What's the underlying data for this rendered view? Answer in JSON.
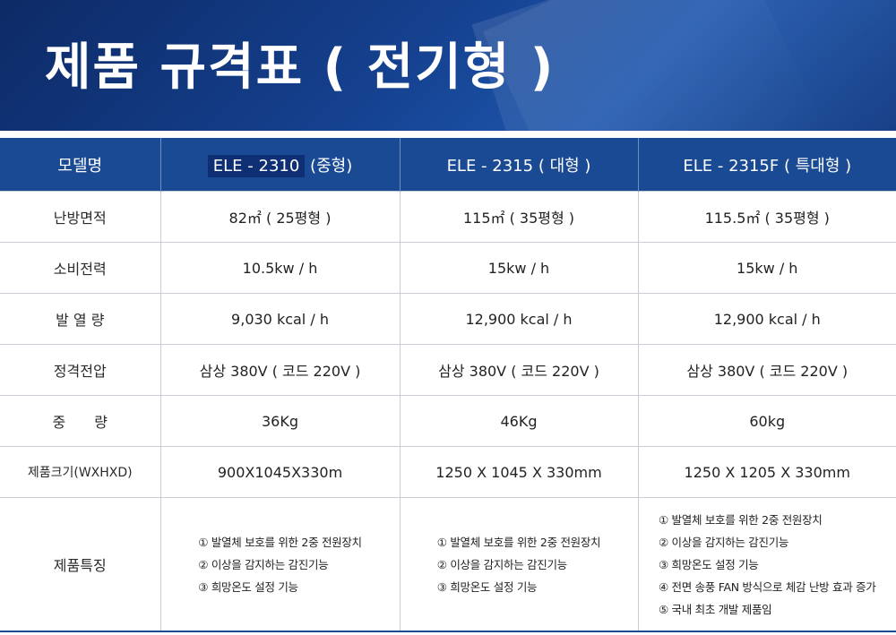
{
  "title": "제품 규격표 ( 전기형 )",
  "header": {
    "label": "모델명",
    "models": [
      {
        "name": "ELE - 2310",
        "suffix": "(중형)"
      },
      {
        "name": "ELE - 2315",
        "suffix": "( 대형 )"
      },
      {
        "name": "ELE - 2315F",
        "suffix": "( 특대형 )"
      }
    ]
  },
  "rows": [
    {
      "label": "난방면적",
      "values": [
        "82㎡ ( 25평형 )",
        "115㎡ ( 35평형 )",
        "115.5㎡ ( 35평형 )"
      ]
    },
    {
      "label": "소비전력",
      "values": [
        "10.5kw / h",
        "15kw / h",
        "15kw / h"
      ]
    },
    {
      "label": "발 열 량",
      "values": [
        "9,030 kcal / h",
        "12,900 kcal / h",
        "12,900 kcal / h"
      ]
    },
    {
      "label": "정격전압",
      "values": [
        "삼상 380V ( 코드 220V )",
        "삼상 380V ( 코드 220V )",
        "삼상 380V ( 코드 220V )"
      ]
    },
    {
      "label": "중　　량",
      "values": [
        "36Kg",
        "46Kg",
        "60kg"
      ]
    },
    {
      "label": "제품크기(WXHXD)",
      "values": [
        "900X1045X330m",
        "1250 X 1045 X 330mm",
        "1250  X 1205 X 330mm"
      ]
    }
  ],
  "features": {
    "label": "제품특징",
    "lists": [
      [
        "① 발열체 보호를 위한 2중 전원장치",
        "② 이상을 감지하는 감진기능",
        "③ 희망온도 설정 기능"
      ],
      [
        "① 발열체 보호를 위한 2중 전원장치",
        "② 이상을 감지하는 감진기능",
        "③ 희망온도 설정 기능"
      ],
      [
        "① 발열체 보호를 위한 2중 전원장치",
        "② 이상을 감지하는 감진기능",
        "③ 희망온도 설정 기능",
        "④ 전면 송풍 FAN 방식으로 체감 난방 효과 증가",
        "⑤ 국내 최초 개발 제품임"
      ]
    ]
  },
  "colors": {
    "banner": "#15418f",
    "header_row": "#1a4a93",
    "text": "#222222"
  }
}
